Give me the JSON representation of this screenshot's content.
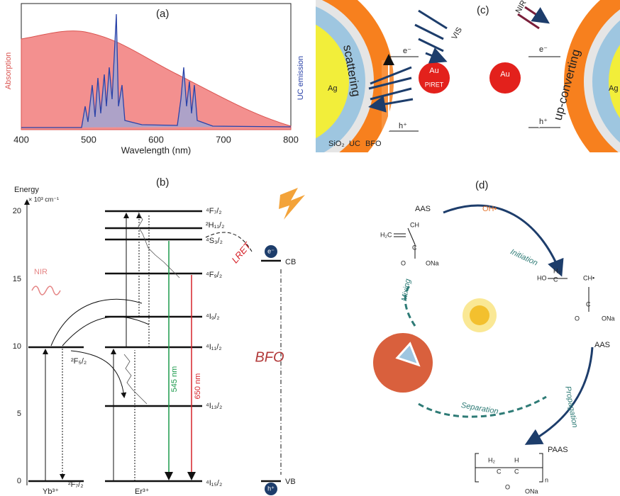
{
  "panel_a": {
    "label": "(a)",
    "y_left_label": "Absorption",
    "y_right_label": "UC emission",
    "x_label": "Wavelength (nm)",
    "x_ticks": [
      "400",
      "500",
      "600",
      "700",
      "800"
    ]
  },
  "panel_c": {
    "label": "(c)",
    "left": {
      "core": "Ag",
      "scattering": "scattering",
      "shell_1": "SiO₂",
      "shell_2": "UC",
      "shell_3": "BFO",
      "light": "VIS",
      "particle": "Au",
      "transfer": "PIRET",
      "electron": "e⁻",
      "hole": "h⁺"
    },
    "right": {
      "light": "NIR",
      "particle": "Au",
      "electron": "e⁻",
      "hole": "h⁺",
      "process": "up-converting",
      "core": "Ag"
    }
  },
  "panel_b": {
    "label": "(b)",
    "y_label": "Energy",
    "y_unit": "× 10³ cm⁻¹",
    "y_ticks": [
      "0",
      "5",
      "10",
      "15",
      "20"
    ],
    "er_levels": [
      "⁴F₇/₂",
      "²H₁₁/₂",
      "⁴S₃/₂",
      "⁴F₉/₂",
      "⁴I₉/₂",
      "⁴I₁₁/₂",
      "⁴I₁₃/₂",
      "⁴I₁₅/₂"
    ],
    "yb_levels": [
      "²F₅/₂",
      "²F₇/₂"
    ],
    "yb_ion": "Yb³⁺",
    "er_ion": "Er³⁺",
    "excitation": "NIR",
    "transfer": "LRET",
    "green_emission": "545 nm",
    "red_emission": "650 nm",
    "semiconductor": "BFO",
    "cb": "CB",
    "vb": "VB",
    "electron": "e⁻",
    "hole": "h⁺"
  },
  "panel_d": {
    "label": "(d)",
    "monomer": "AAS",
    "radical": "OH•",
    "step_1": "Initiation",
    "step_2": "Propagation",
    "monomer_2": "AAS",
    "step_3": "Separation",
    "step_4": "Mixing",
    "product": "PAAS",
    "aas_structure": [
      "H₂C",
      "CH",
      "C",
      "O",
      "ONa"
    ],
    "radical_structure": [
      "HO",
      "H₂",
      "C",
      "CH•",
      "C",
      "O",
      "ONa"
    ],
    "paas_structure": [
      "H₂",
      "H",
      "C",
      "C",
      "n",
      "O",
      "ONa"
    ]
  }
}
